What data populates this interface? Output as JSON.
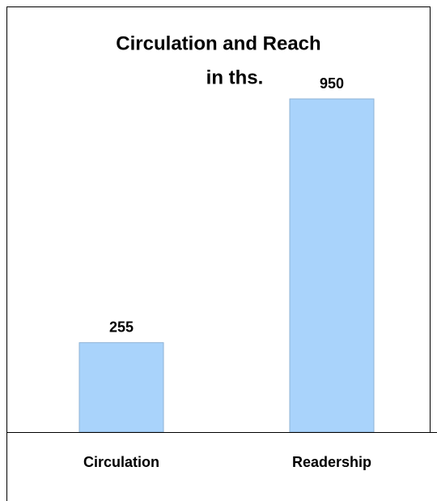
{
  "chart_data": {
    "type": "bar",
    "title": "Circulation and Reach",
    "subtitle": "in ths.",
    "categories": [
      "Circulation",
      "Readership"
    ],
    "values": [
      255,
      950
    ],
    "color": "#a9d3fb"
  }
}
